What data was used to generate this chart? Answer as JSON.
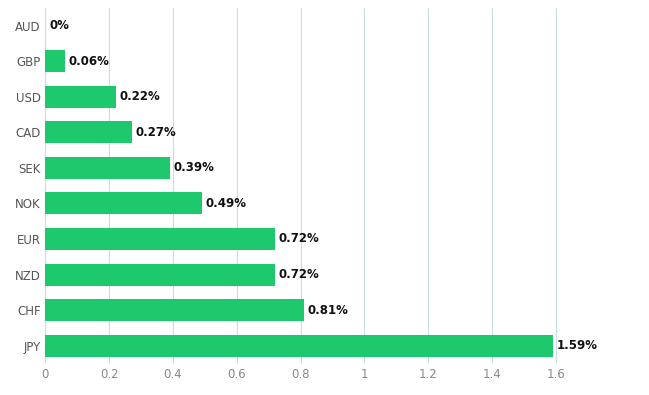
{
  "categories": [
    "JPY",
    "CHF",
    "NZD",
    "EUR",
    "NOK",
    "SEK",
    "CAD",
    "USD",
    "GBP",
    "AUD"
  ],
  "values": [
    1.59,
    0.81,
    0.72,
    0.72,
    0.49,
    0.39,
    0.27,
    0.22,
    0.06,
    0.0
  ],
  "labels": [
    "1.59%",
    "0.81%",
    "0.72%",
    "0.72%",
    "0.49%",
    "0.39%",
    "0.27%",
    "0.22%",
    "0.06%",
    "0%"
  ],
  "bar_color": "#1ec96e",
  "background_color": "#ffffff",
  "xlim": [
    0,
    1.75
  ],
  "xticks": [
    0,
    0.2,
    0.4,
    0.6,
    0.8,
    1.0,
    1.2,
    1.4,
    1.6
  ],
  "xtick_labels": [
    "0",
    "0.2",
    "0.4",
    "0.6",
    "0.8",
    "1",
    "1.2",
    "1.4",
    "1.6"
  ],
  "grid_color": "#c8dde8",
  "label_fontsize": 8.5,
  "tick_fontsize": 8.5,
  "ytick_fontsize": 8.5,
  "bar_height": 0.62
}
